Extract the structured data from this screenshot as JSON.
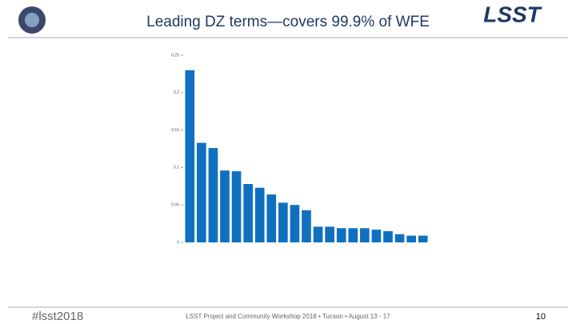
{
  "header": {
    "title": "Leading DZ terms—covers 99.9% of WFE",
    "logo": "LSST"
  },
  "footer": {
    "hashtag": "#lsst2018",
    "event": "LSST Project and Community Workshop 2018 • Tucson • August 13 - 17",
    "page": "10"
  },
  "chart_data": {
    "type": "bar",
    "color": "#1070c0",
    "categories": [
      null,
      null,
      null,
      null,
      null,
      null,
      null,
      null,
      null,
      null,
      null,
      null,
      null,
      null,
      null,
      null,
      null,
      null,
      null,
      null,
      null
    ],
    "values": [
      0.23,
      0.133,
      0.126,
      0.096,
      0.095,
      0.078,
      0.073,
      0.064,
      0.053,
      0.05,
      0.043,
      0.021,
      0.021,
      0.019,
      0.019,
      0.019,
      0.017,
      0.015,
      0.011,
      0.009,
      0.009
    ],
    "ylim": [
      0,
      0.25
    ],
    "yticks": [
      0,
      0.05,
      0.1,
      0.15,
      0.2,
      0.25
    ],
    "grid": false
  }
}
